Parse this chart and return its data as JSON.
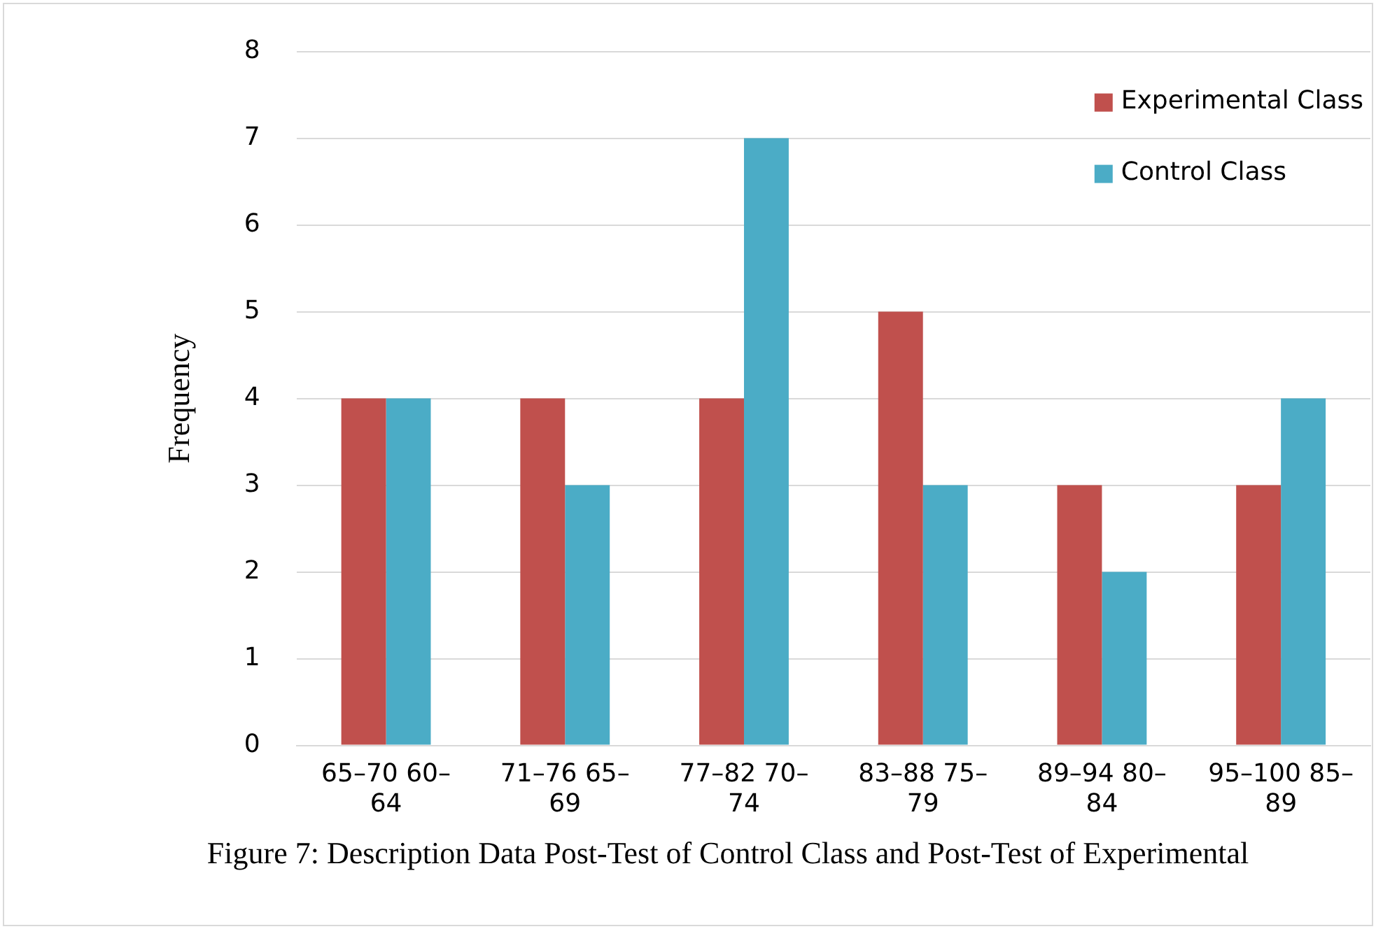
{
  "chart_data": {
    "type": "bar",
    "ylabel": "Frequency",
    "categories": [
      "65–70 60–64",
      "71–76 65–69",
      "77–82 70–74",
      "83–88 75–79",
      "89–94 80–84",
      "95–100 85–89"
    ],
    "series": [
      {
        "name": "Experimental Class",
        "color": "#c0504d",
        "values": [
          4,
          4,
          4,
          5,
          3,
          3
        ]
      },
      {
        "name": "Control Class",
        "color": "#4bacc6",
        "values": [
          4,
          3,
          7,
          3,
          2,
          4
        ]
      }
    ],
    "ylim": [
      0,
      8
    ],
    "yticks": [
      0,
      1,
      2,
      3,
      4,
      5,
      6,
      7,
      8
    ],
    "grid": "y",
    "legend": "top right",
    "annotations": [
      "Figure 7: Description Data Post-Test of Control Class and Post-Test of Experimental"
    ]
  }
}
